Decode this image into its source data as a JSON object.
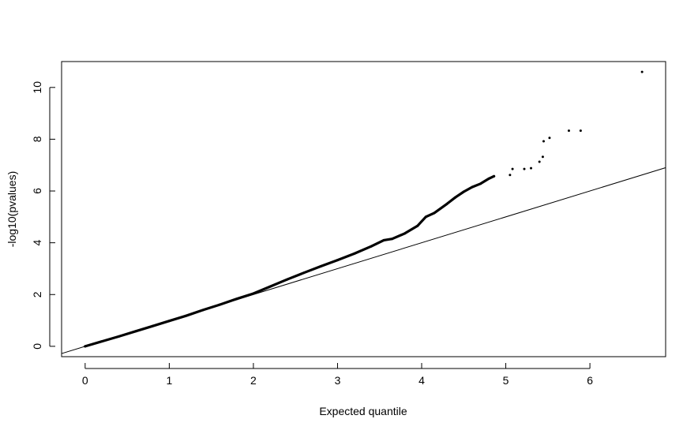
{
  "chart_data": {
    "type": "scatter",
    "title": "",
    "xlabel": "Expected quantile",
    "ylabel": "-log10(pvalues)",
    "xlim": [
      -0.28,
      6.9
    ],
    "ylim": [
      -0.4,
      11.0
    ],
    "xticks": [
      0,
      1,
      2,
      3,
      4,
      5,
      6
    ],
    "yticks": [
      0,
      2,
      4,
      6,
      8,
      10
    ],
    "x_tick_labels": [
      "0",
      "1",
      "2",
      "3",
      "4",
      "5",
      "6"
    ],
    "y_tick_labels": [
      "0",
      "2",
      "4",
      "6",
      "8",
      "10"
    ],
    "grid": false,
    "legend": "none",
    "reference_line": {
      "slope": 1,
      "intercept": 0
    },
    "series": [
      {
        "points": [
          [
            0.0,
            0.0
          ],
          [
            0.2,
            0.19
          ],
          [
            0.4,
            0.38
          ],
          [
            0.6,
            0.58
          ],
          [
            0.8,
            0.78
          ],
          [
            1.0,
            0.98
          ],
          [
            1.2,
            1.18
          ],
          [
            1.4,
            1.4
          ],
          [
            1.6,
            1.61
          ],
          [
            1.8,
            1.83
          ],
          [
            2.0,
            2.04
          ],
          [
            2.2,
            2.31
          ],
          [
            2.4,
            2.58
          ],
          [
            2.6,
            2.84
          ],
          [
            2.8,
            3.09
          ],
          [
            3.0,
            3.33
          ],
          [
            3.2,
            3.58
          ],
          [
            3.4,
            3.86
          ],
          [
            3.55,
            4.1
          ],
          [
            3.65,
            4.15
          ],
          [
            3.8,
            4.36
          ],
          [
            3.95,
            4.65
          ],
          [
            4.05,
            5.0
          ],
          [
            4.15,
            5.15
          ],
          [
            4.3,
            5.5
          ],
          [
            4.4,
            5.75
          ],
          [
            4.5,
            5.97
          ],
          [
            4.6,
            6.15
          ],
          [
            4.7,
            6.28
          ],
          [
            4.8,
            6.48
          ],
          [
            4.86,
            6.57
          ],
          [
            5.05,
            6.62
          ],
          [
            5.08,
            6.85
          ],
          [
            5.22,
            6.85
          ],
          [
            5.3,
            6.88
          ],
          [
            5.4,
            7.13
          ],
          [
            5.44,
            7.32
          ],
          [
            5.45,
            7.92
          ],
          [
            5.52,
            8.05
          ],
          [
            5.75,
            8.33
          ],
          [
            5.89,
            8.33
          ],
          [
            6.62,
            10.6
          ]
        ]
      }
    ]
  }
}
